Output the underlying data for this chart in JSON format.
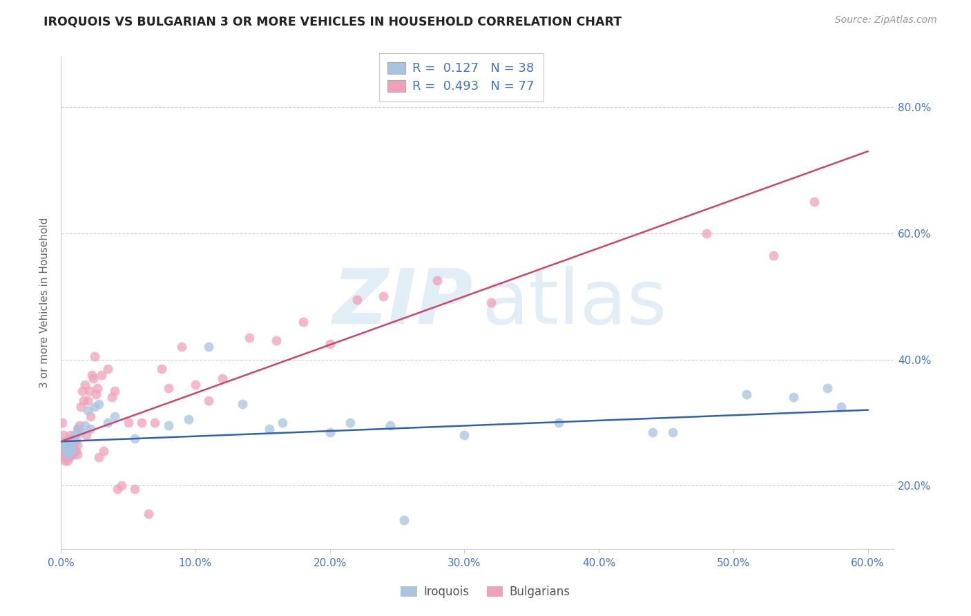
{
  "title": "IROQUOIS VS BULGARIAN 3 OR MORE VEHICLES IN HOUSEHOLD CORRELATION CHART",
  "source": "Source: ZipAtlas.com",
  "ylabel": "3 or more Vehicles in Household",
  "xlim": [
    0.0,
    0.62
  ],
  "ylim": [
    0.1,
    0.88
  ],
  "xtick_labels": [
    "0.0%",
    "10.0%",
    "20.0%",
    "30.0%",
    "40.0%",
    "50.0%",
    "60.0%"
  ],
  "xtick_vals": [
    0.0,
    0.1,
    0.2,
    0.3,
    0.4,
    0.5,
    0.6
  ],
  "ytick_labels": [
    "20.0%",
    "40.0%",
    "60.0%",
    "80.0%"
  ],
  "ytick_vals": [
    0.2,
    0.4,
    0.6,
    0.8
  ],
  "legend_iroquois_r": "0.127",
  "legend_iroquois_n": "38",
  "legend_bulgarian_r": "0.493",
  "legend_bulgarian_n": "77",
  "iroquois_color": "#a8c4e0",
  "bulgarian_color": "#f0a0b8",
  "iroquois_line_color": "#3060b0",
  "bulgarian_line_color": "#d04468",
  "iroquois_x": [
    0.001,
    0.002,
    0.003,
    0.004,
    0.005,
    0.006,
    0.007,
    0.008,
    0.009,
    0.01,
    0.012,
    0.015,
    0.018,
    0.02,
    0.022,
    0.025,
    0.028,
    0.035,
    0.04,
    0.055,
    0.08,
    0.095,
    0.11,
    0.135,
    0.155,
    0.165,
    0.2,
    0.215,
    0.245,
    0.255,
    0.3,
    0.37,
    0.44,
    0.455,
    0.51,
    0.545,
    0.57,
    0.58
  ],
  "iroquois_y": [
    0.265,
    0.26,
    0.27,
    0.255,
    0.25,
    0.265,
    0.26,
    0.255,
    0.27,
    0.28,
    0.29,
    0.285,
    0.295,
    0.32,
    0.29,
    0.325,
    0.33,
    0.3,
    0.31,
    0.275,
    0.295,
    0.305,
    0.42,
    0.33,
    0.29,
    0.3,
    0.285,
    0.3,
    0.295,
    0.145,
    0.28,
    0.3,
    0.285,
    0.285,
    0.345,
    0.34,
    0.355,
    0.325
  ],
  "bulgarian_x": [
    0.001,
    0.001,
    0.001,
    0.002,
    0.002,
    0.002,
    0.003,
    0.003,
    0.003,
    0.004,
    0.004,
    0.004,
    0.005,
    0.005,
    0.005,
    0.006,
    0.006,
    0.006,
    0.007,
    0.007,
    0.007,
    0.008,
    0.008,
    0.008,
    0.009,
    0.009,
    0.01,
    0.01,
    0.011,
    0.011,
    0.012,
    0.012,
    0.013,
    0.014,
    0.015,
    0.016,
    0.017,
    0.018,
    0.019,
    0.02,
    0.021,
    0.022,
    0.023,
    0.024,
    0.025,
    0.026,
    0.027,
    0.028,
    0.03,
    0.032,
    0.035,
    0.038,
    0.04,
    0.042,
    0.045,
    0.05,
    0.055,
    0.06,
    0.065,
    0.07,
    0.075,
    0.08,
    0.09,
    0.1,
    0.11,
    0.12,
    0.14,
    0.16,
    0.18,
    0.2,
    0.22,
    0.24,
    0.28,
    0.32,
    0.48,
    0.53,
    0.56
  ],
  "bulgarian_y": [
    0.265,
    0.3,
    0.245,
    0.28,
    0.265,
    0.25,
    0.27,
    0.255,
    0.24,
    0.27,
    0.255,
    0.245,
    0.265,
    0.255,
    0.24,
    0.27,
    0.255,
    0.245,
    0.28,
    0.265,
    0.255,
    0.275,
    0.265,
    0.25,
    0.265,
    0.25,
    0.27,
    0.255,
    0.275,
    0.255,
    0.265,
    0.25,
    0.29,
    0.295,
    0.325,
    0.35,
    0.335,
    0.36,
    0.28,
    0.335,
    0.35,
    0.31,
    0.375,
    0.37,
    0.405,
    0.345,
    0.355,
    0.245,
    0.375,
    0.255,
    0.385,
    0.34,
    0.35,
    0.195,
    0.2,
    0.3,
    0.195,
    0.3,
    0.155,
    0.3,
    0.385,
    0.355,
    0.42,
    0.36,
    0.335,
    0.37,
    0.435,
    0.43,
    0.46,
    0.425,
    0.495,
    0.5,
    0.525,
    0.49,
    0.6,
    0.565,
    0.65
  ]
}
